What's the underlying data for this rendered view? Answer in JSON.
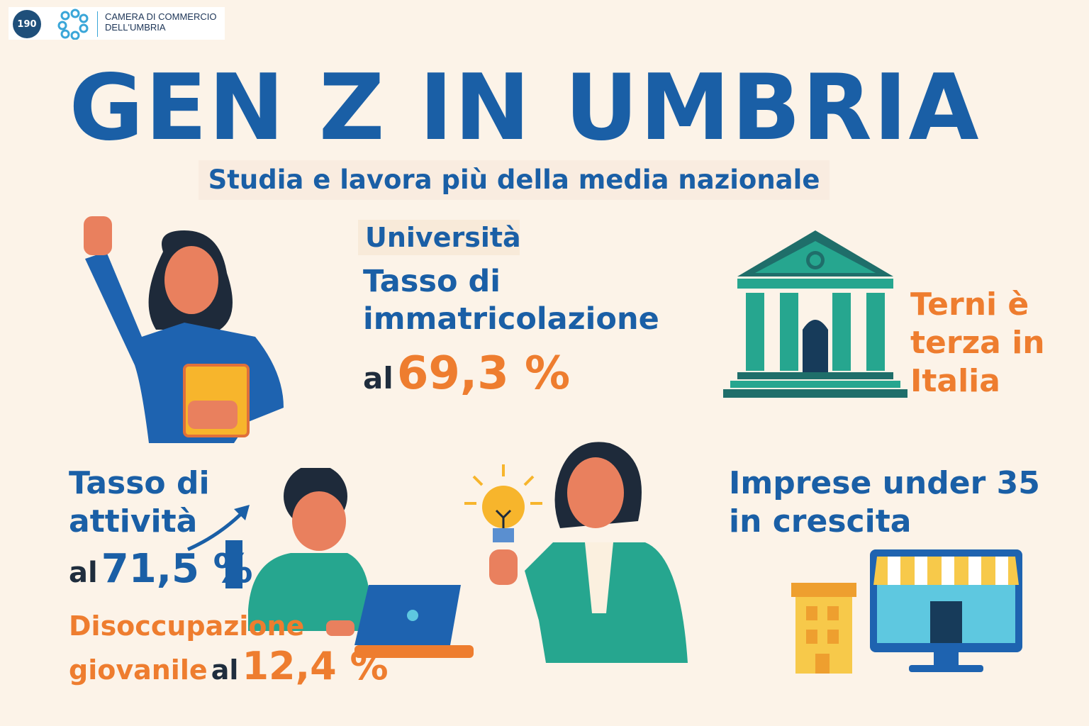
{
  "header": {
    "seal_text": "190",
    "org_name_line1": "CAMERA DI COMMERCIO",
    "org_name_line2": "DELL'UMBRIA"
  },
  "title": "GEN Z IN UMBRIA",
  "subtitle": "Studia e lavora più della media nazionale",
  "university": {
    "label": "Università",
    "line1": "Tasso di",
    "line2": "immatricolazione",
    "prefix": "al",
    "value": "69,3 %"
  },
  "terni": {
    "line1": "Terni è",
    "line2": "terza in",
    "line3": "Italia"
  },
  "activity": {
    "line1": "Tasso di",
    "line2": "attività",
    "prefix": "al",
    "value": "71,5 %"
  },
  "unemployment": {
    "line1": "Disoccupazione",
    "line2": "giovanile",
    "prefix": "al",
    "value": "12,4 %"
  },
  "business": {
    "line1": "Imprese under 35",
    "line2": "in crescita"
  },
  "colors": {
    "blue": "#1a5fa6",
    "orange": "#ee7d2f",
    "teal": "#26a68f",
    "background": "#fcf3e8"
  },
  "icons": [
    "raised-fist-student-illustration",
    "bank-building-icon",
    "trend-arrow-icon",
    "student-laptop-illustration",
    "lightbulb-icon",
    "businesswoman-illustration",
    "shop-monitor-icon",
    "building-icon"
  ]
}
